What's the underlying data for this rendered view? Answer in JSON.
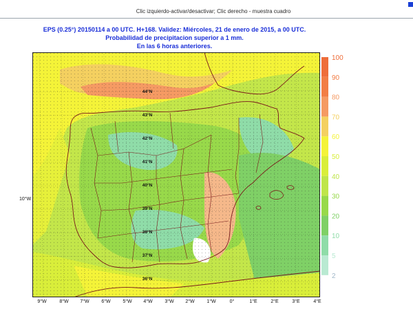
{
  "header": {
    "hint": "Clic izquierdo-activar/desactivar; Clic derecho - muestra cuadro"
  },
  "title": {
    "line1": "EPS (0.25°) 20150114 a 00 UTC.  H+168. Validez: Miércoles, 21 de enero de 2015,  a  00 UTC.",
    "line2": "Probabilidad de precipitacion superior a 1 mm.",
    "line3": "En las 6 horas anteriores."
  },
  "map": {
    "longitude_labels": [
      "9°W",
      "8°W",
      "7°W",
      "6°W",
      "5°W",
      "4°W",
      "3°W",
      "2°W",
      "1°W",
      "0°",
      "1°E",
      "2°E",
      "3°E",
      "4°E"
    ],
    "latitude_labels": [
      "44°N",
      "43°N",
      "42°N",
      "41°N",
      "40°N",
      "39°N",
      "38°N",
      "37°N",
      "36°N"
    ],
    "left_axis_label": "10°W"
  },
  "legend": {
    "levels": [
      {
        "label": "100",
        "color": "#ee6d3a"
      },
      {
        "label": "90",
        "color": "#f27d45"
      },
      {
        "label": "80",
        "color": "#f59a63"
      },
      {
        "label": "70",
        "color": "#f4d060"
      },
      {
        "label": "60",
        "color": "#f4f338"
      },
      {
        "label": "50",
        "color": "#d9ee3a"
      },
      {
        "label": "40",
        "color": "#bfe54a"
      },
      {
        "label": "30",
        "color": "#98d94a"
      },
      {
        "label": "20",
        "color": "#7fd066"
      },
      {
        "label": "10",
        "color": "#8fdca8"
      },
      {
        "label": "5",
        "color": "#b9ead2"
      },
      {
        "label": "2",
        "color": "#ffffff"
      }
    ]
  }
}
